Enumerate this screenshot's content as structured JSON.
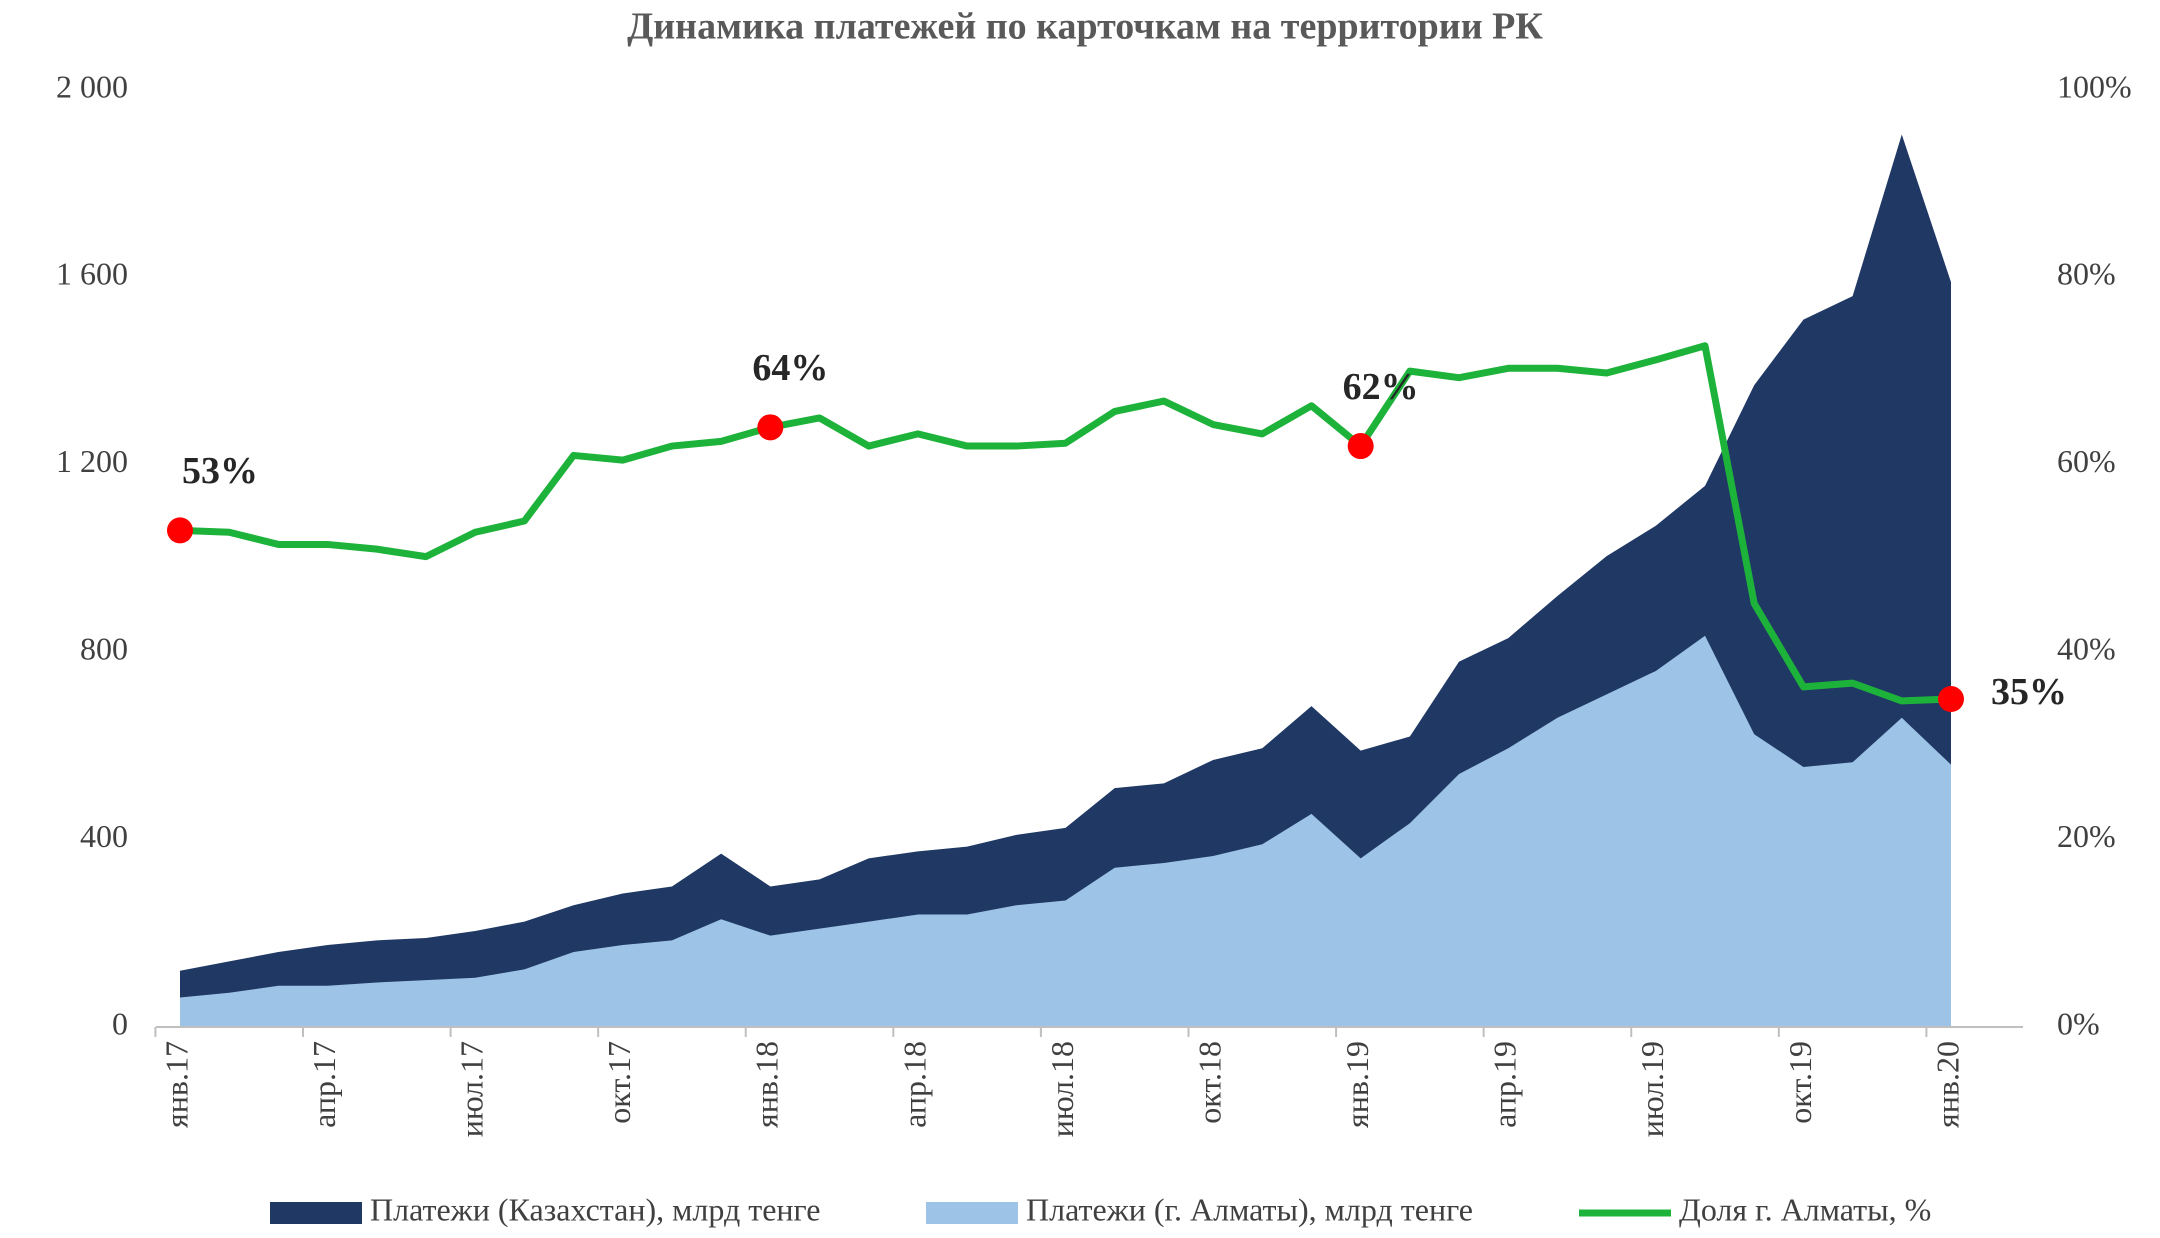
{
  "chart_data": {
    "type": "area",
    "title": "Динамика платежей по карточкам на территории РК",
    "categories": [
      "янв.17",
      null,
      null,
      "апр.17",
      null,
      null,
      "июл.17",
      null,
      null,
      "окт.17",
      null,
      null,
      "янв.18",
      null,
      null,
      "апр.18",
      null,
      null,
      "июл.18",
      null,
      null,
      "окт.18",
      null,
      null,
      "янв.19",
      null,
      null,
      "апр.19",
      null,
      null,
      "июл.19",
      null,
      null,
      "окт.19",
      null,
      null,
      "янв.20"
    ],
    "ylim": [
      0,
      2000
    ],
    "yticks": [
      0,
      400,
      800,
      {
        "value": 1200,
        "label": "1 200"
      },
      {
        "value": 1600,
        "label": "1 600"
      },
      {
        "value": 2000,
        "label": "2 000"
      }
    ],
    "y2lim": [
      0,
      100
    ],
    "y2ticks": [
      {
        "value": 0,
        "label": "0%"
      },
      {
        "value": 20,
        "label": "20%"
      },
      {
        "value": 40,
        "label": "40%"
      },
      {
        "value": 60,
        "label": "60%"
      },
      {
        "value": 80,
        "label": "80%"
      },
      {
        "value": 100,
        "label": "100%"
      }
    ],
    "series": [
      {
        "name": "Платежи (Казахстан), млрд тенге",
        "type": "area",
        "color": "#1f3864",
        "values": [
          120,
          140,
          160,
          175,
          185,
          190,
          205,
          225,
          260,
          285,
          300,
          370,
          300,
          315,
          360,
          375,
          385,
          410,
          425,
          510,
          520,
          570,
          595,
          685,
          590,
          620,
          780,
          830,
          920,
          1005,
          1070,
          1155,
          1370,
          1510,
          1560,
          1905,
          1590
        ]
      },
      {
        "name": "Платежи (г. Алматы), млрд тенге",
        "type": "area",
        "color": "#9dc3e6",
        "values": [
          63,
          73,
          88,
          88,
          95,
          100,
          105,
          123,
          160,
          175,
          185,
          230,
          195,
          210,
          225,
          240,
          240,
          260,
          270,
          340,
          350,
          365,
          390,
          455,
          360,
          435,
          540,
          595,
          660,
          710,
          760,
          835,
          625,
          555,
          565,
          660,
          560
        ]
      },
      {
        "name": "Доля г. Алматы, %",
        "type": "line",
        "axis": "y2",
        "color": "#1db33a",
        "highlight_color": "#ff0000",
        "values": [
          53,
          52.8,
          51.5,
          51.5,
          51,
          50.2,
          52.8,
          54,
          61,
          60.5,
          62,
          62.5,
          64,
          65,
          62,
          63.3,
          62,
          62,
          62.3,
          65.7,
          66.8,
          64.3,
          63.3,
          66.3,
          62,
          70,
          69.3,
          70.3,
          70.3,
          69.8,
          71.2,
          72.7,
          45.2,
          36.3,
          36.7,
          34.8,
          35
        ],
        "value_labels": [
          "53%",
          null,
          null,
          null,
          null,
          null,
          null,
          null,
          null,
          null,
          null,
          null,
          "64%",
          null,
          null,
          null,
          null,
          null,
          null,
          null,
          null,
          null,
          null,
          null,
          "62%",
          null,
          null,
          null,
          null,
          null,
          null,
          null,
          null,
          null,
          null,
          null,
          "35%"
        ]
      }
    ]
  }
}
